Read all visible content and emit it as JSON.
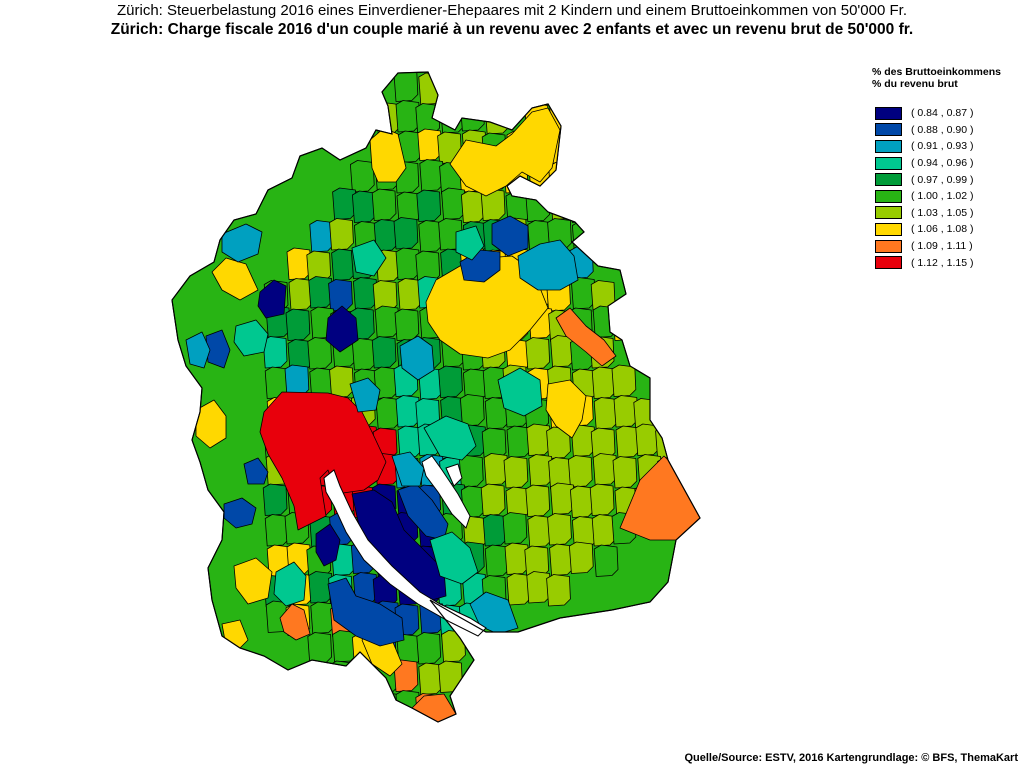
{
  "title": {
    "line_de": "Zürich: Steuerbelastung 2016 eines Einverdiener-Ehepaares mit 2 Kindern und einem Bruttoeinkommen von 50'000 Fr.",
    "line_fr": "Zürich: Charge fiscale 2016 d'un couple marié à un revenu avec 2 enfants et avec un revenu brut de 50'000 fr."
  },
  "legend": {
    "title_de": "% des Bruttoeinkommens",
    "title_fr": "% du revenu brut",
    "classes": [
      {
        "label": "( 0.84 , 0.87 )",
        "color": "#000080"
      },
      {
        "label": "( 0.88 , 0.90 )",
        "color": "#0048A8"
      },
      {
        "label": "( 0.91 , 0.93 )",
        "color": "#00A0C0"
      },
      {
        "label": "( 0.94 , 0.96 )",
        "color": "#00C890"
      },
      {
        "label": "( 0.97 , 0.99 )",
        "color": "#009C38"
      },
      {
        "label": "( 1.00 , 1.02 )",
        "color": "#28B414"
      },
      {
        "label": "( 1.03 , 1.05 )",
        "color": "#98CC00"
      },
      {
        "label": "( 1.06 , 1.08 )",
        "color": "#FFD800"
      },
      {
        "label": "( 1.09 , 1.11 )",
        "color": "#FF7820"
      },
      {
        "label": "( 1.12 , 1.15 )",
        "color": "#E8000C"
      }
    ]
  },
  "source": "Quelle/Source: ESTV, 2016 Kartengrundlage: © BFS, ThemaKart",
  "map": {
    "border_color": "#000000",
    "lake_color": "#ffffff"
  }
}
